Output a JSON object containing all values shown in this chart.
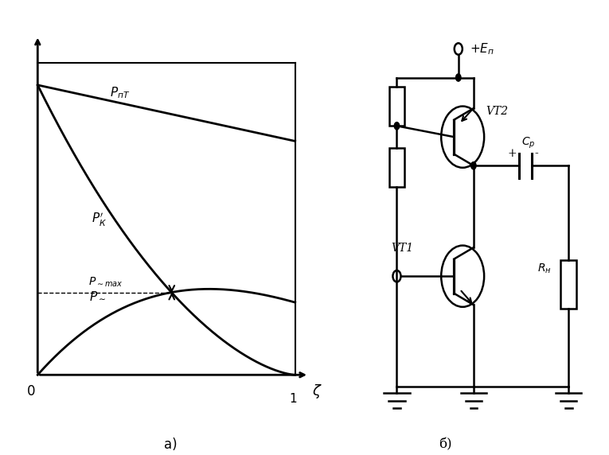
{
  "bg_color": "#ffffff",
  "line_color": "#000000",
  "fig_width": 7.65,
  "fig_height": 5.72,
  "label_a": "а)",
  "label_b": "б)",
  "Ep_label": "+E_{п}",
  "VT2_label": "VT2",
  "VT1_label": "VT1",
  "Cp_label": "C_{р}",
  "RH_label": "R_{н}"
}
